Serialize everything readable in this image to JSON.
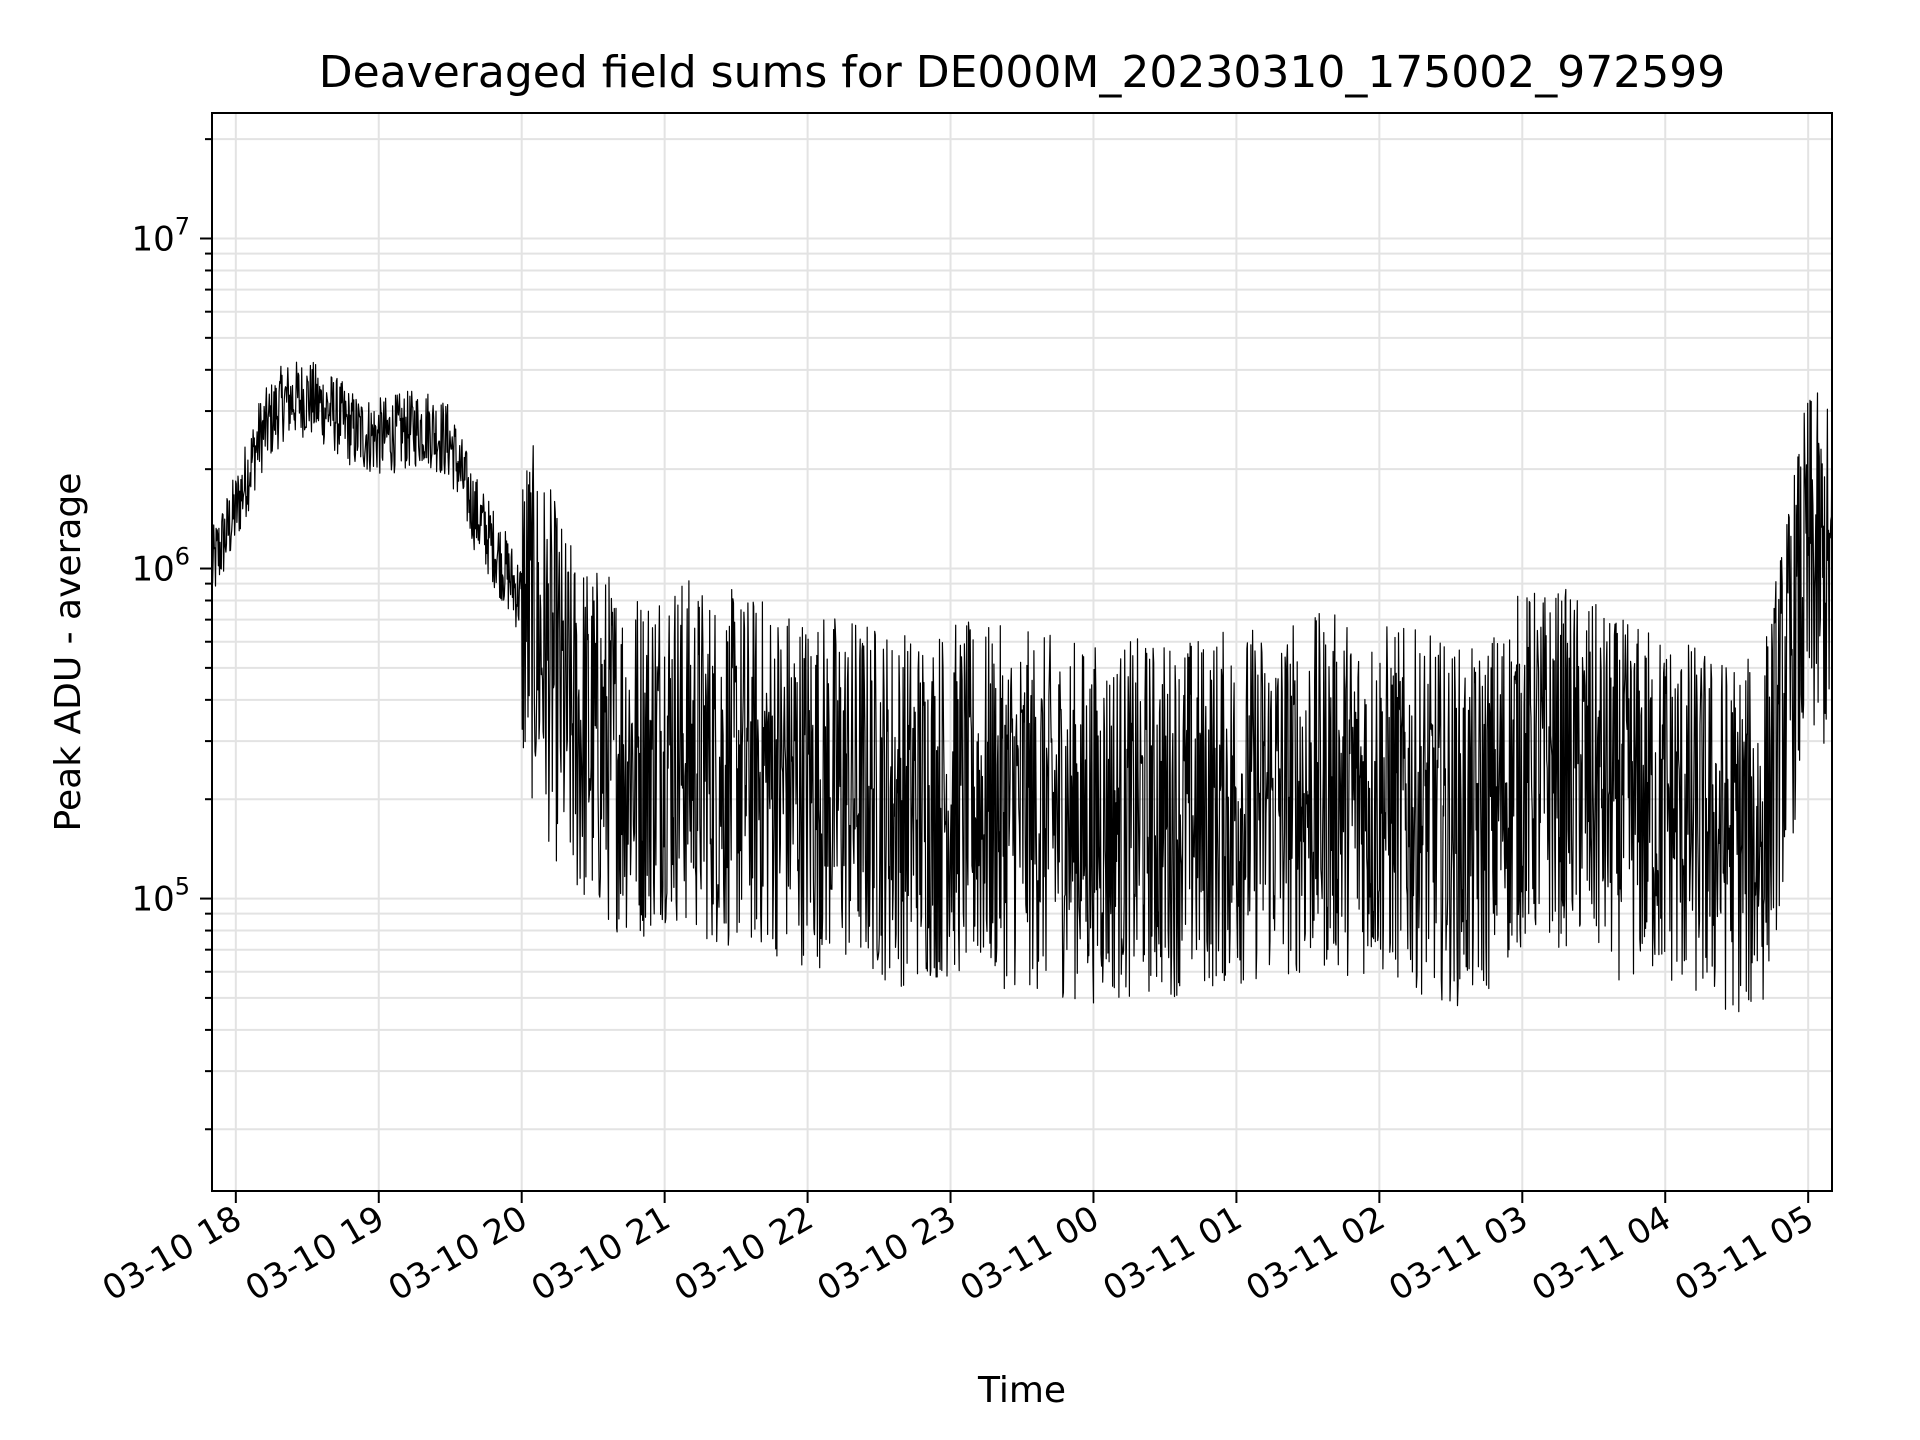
{
  "chart_data": {
    "type": "line",
    "title": "Deaveraged field sums for DE000M_20230310_175002_972599",
    "xlabel": "Time",
    "ylabel": "Peak ADU - average",
    "yscale": "log",
    "xlim": [
      "2023-03-10 17:50",
      "2023-03-11 05:10"
    ],
    "ylim": [
      13000,
      24000000
    ],
    "grid": true,
    "line_color": "#000000",
    "x_ticks": [
      {
        "value": "2023-03-10 18:00",
        "label": "03-10 18"
      },
      {
        "value": "2023-03-10 19:00",
        "label": "03-10 19"
      },
      {
        "value": "2023-03-10 20:00",
        "label": "03-10 20"
      },
      {
        "value": "2023-03-10 21:00",
        "label": "03-10 21"
      },
      {
        "value": "2023-03-10 22:00",
        "label": "03-10 22"
      },
      {
        "value": "2023-03-10 23:00",
        "label": "03-10 23"
      },
      {
        "value": "2023-03-11 00:00",
        "label": "03-11 00"
      },
      {
        "value": "2023-03-11 01:00",
        "label": "03-11 01"
      },
      {
        "value": "2023-03-11 02:00",
        "label": "03-11 02"
      },
      {
        "value": "2023-03-11 03:00",
        "label": "03-11 03"
      },
      {
        "value": "2023-03-11 04:00",
        "label": "03-11 04"
      },
      {
        "value": "2023-03-11 05:00",
        "label": "03-11 05"
      }
    ],
    "y_ticks": [
      {
        "value": 100000,
        "base": "10",
        "exp": "5"
      },
      {
        "value": 1000000,
        "base": "10",
        "exp": "6"
      },
      {
        "value": 10000000,
        "base": "10",
        "exp": "7"
      }
    ],
    "series": [
      {
        "x": [
          "2023-03-10 17:50",
          "2023-03-10 18:00",
          "2023-03-10 18:10",
          "2023-03-10 18:20",
          "2023-03-10 18:30",
          "2023-03-10 18:40",
          "2023-03-10 18:50",
          "2023-03-10 19:00",
          "2023-03-10 19:10",
          "2023-03-10 19:20",
          "2023-03-10 19:30",
          "2023-03-10 19:40",
          "2023-03-10 19:50",
          "2023-03-10 20:00",
          "2023-03-10 20:10",
          "2023-03-10 20:20",
          "2023-03-10 20:30",
          "2023-03-10 20:40",
          "2023-03-10 20:50",
          "2023-03-10 21:00",
          "2023-03-10 21:20",
          "2023-03-10 21:40",
          "2023-03-10 22:00",
          "2023-03-10 22:20",
          "2023-03-10 22:40",
          "2023-03-10 23:00",
          "2023-03-10 23:20",
          "2023-03-10 23:40",
          "2023-03-11 00:00",
          "2023-03-11 00:20",
          "2023-03-11 00:40",
          "2023-03-11 01:00",
          "2023-03-11 01:20",
          "2023-03-11 01:40",
          "2023-03-11 02:00",
          "2023-03-11 02:20",
          "2023-03-11 02:40",
          "2023-03-11 03:00",
          "2023-03-11 03:20",
          "2023-03-11 03:40",
          "2023-03-11 04:00",
          "2023-03-11 04:20",
          "2023-03-11 04:40",
          "2023-03-11 05:00",
          "2023-03-11 05:10"
        ],
        "y": [
          1000000,
          1500000,
          2500000,
          3200000,
          3300000,
          3000000,
          2600000,
          2500000,
          2600000,
          2700000,
          2400000,
          1500000,
          1100000,
          800000,
          550000,
          350000,
          300000,
          280000,
          260000,
          300000,
          250000,
          240000,
          220000,
          210000,
          190000,
          200000,
          190000,
          180000,
          170000,
          175000,
          180000,
          190000,
          200000,
          210000,
          200000,
          180000,
          160000,
          250000,
          250000,
          200000,
          190000,
          160000,
          150000,
          1000000,
          900000
        ]
      }
    ]
  }
}
